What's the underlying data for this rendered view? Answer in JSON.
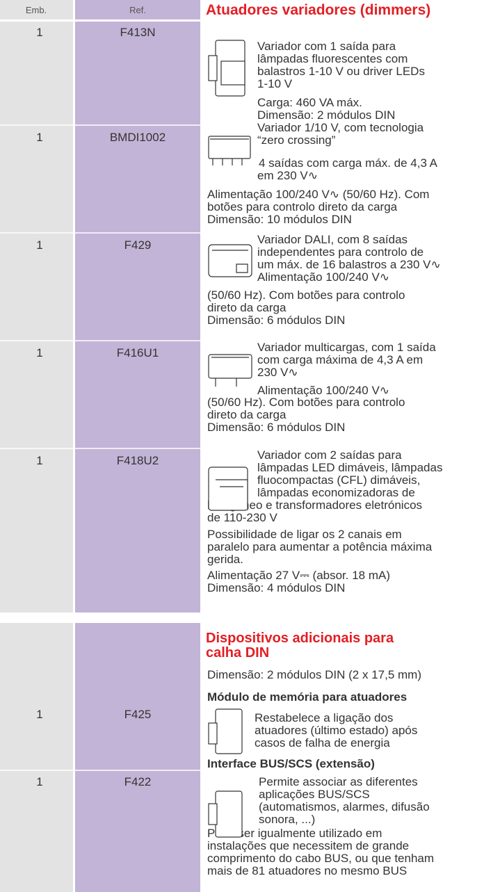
{
  "header": {
    "emb": "Emb.",
    "ref": "Ref.",
    "title": "Atuadores variadores (dimmers)"
  },
  "rows": [
    {
      "emb": "1",
      "ref": "F413N"
    },
    {
      "emb": "1",
      "ref": "BMDI1002"
    },
    {
      "emb": "1",
      "ref": "F429"
    },
    {
      "emb": "1",
      "ref": "F416U1"
    },
    {
      "emb": "1",
      "ref": "F418U2"
    },
    {
      "emb": "1",
      "ref": "F425"
    },
    {
      "emb": "1",
      "ref": "F422"
    }
  ],
  "section1": {
    "lines": [
      "Variador com 1 saída para",
      "lâmpadas fluorescentes com",
      "balastros 1-10 V ou driver LEDs",
      "1-10 V",
      "Carga: 460 VA máx.",
      "Dimensão: 2 módulos DIN",
      "Variador 1/10 V, com tecnologia",
      "“zero crossing”",
      "4 saídas com carga máx. de 4,3 A",
      "em 230 V∿",
      "Alimentação 100/240 V∿ (50/60 Hz). Com",
      "botões para controlo direto da carga",
      "Dimensão: 10 módulos DIN",
      "Variador DALI, com 8 saídas",
      "independentes para controlo de",
      "um máx. de 16 balastros a 230 V∿",
      "Alimentação 100/240 V∿",
      "(50/60 Hz). Com botões para controlo",
      "direto da carga",
      "Dimensão: 6 módulos DIN",
      "Variador multicargas, com 1 saída",
      "com carga máxima de 4,3 A em",
      "230 V∿",
      "Alimentação 100/240 V∿",
      "(50/60 Hz). Com botões para controlo",
      "direto da carga",
      "Dimensão: 6 módulos DIN",
      "Variador com 2 saídas para",
      "lâmpadas LED dimáveis, lâmpadas",
      "fluocompactas (CFL) dimáveis,",
      "lâmpadas economizadoras de",
      "halogéneo e transformadores eletrónicos",
      "de 110-230 V",
      "Possibilidade de ligar os 2 canais em",
      "paralelo para aumentar a potência máxima",
      "gerida.",
      "Alimentação 27 V⎓ (absor. 18 mA)",
      "Dimensão: 4 módulos DIN"
    ]
  },
  "section2": {
    "title": [
      "Dispositivos adicionais para",
      "calha DIN"
    ],
    "lines": [
      "Dimensão: 2 módulos DIN (2 x 17,5 mm)",
      "Módulo de memória para atuadores",
      "Restabelece a ligação dos",
      "atuadores (último estado) após",
      "casos de falha de energia",
      "Interface BUS/SCS (extensão)",
      "Permite associar as diferentes",
      "aplicações BUS/SCS",
      "(automatismos, alarmes, difusão",
      "sonora, ...)",
      "Pode ser igualmente utilizado em",
      "instalações que necessitem de grande",
      "comprimento do cabo BUS, ou que tenham",
      "mais de 81 atuadores no mesmo BUS"
    ]
  }
}
